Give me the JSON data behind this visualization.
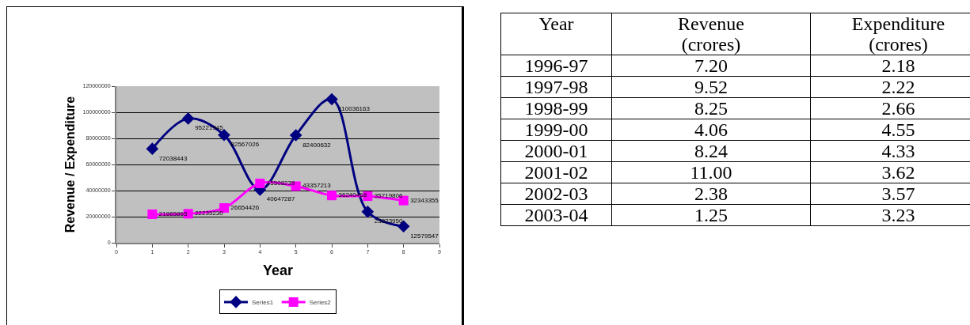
{
  "chart_data": [
    {
      "type": "line",
      "xlabel": "Year",
      "ylabel": "Revenue / Expenditure",
      "x": [
        1,
        2,
        3,
        4,
        5,
        6,
        7,
        8
      ],
      "xlim": [
        0,
        9
      ],
      "xticks": [
        0,
        1,
        2,
        3,
        4,
        5,
        6,
        7,
        8,
        9
      ],
      "ylim": [
        0,
        120000000
      ],
      "yticks": [
        0,
        20000000,
        40000000,
        60000000,
        80000000,
        100000000,
        120000000
      ],
      "grid": "y",
      "legend": "bottom",
      "data_labels": true,
      "series": [
        {
          "name": "Series1",
          "color": "#000080",
          "marker": "diamond",
          "values": [
            72038443,
            95221945,
            82567026,
            40647287,
            82400632,
            110036163,
            23823950,
            12579547
          ]
        },
        {
          "name": "Series2",
          "color": "#ff00ff",
          "marker": "square",
          "values": [
            21865865,
            22235230,
            26654426,
            45508239,
            43357213,
            36240468,
            35719806,
            32343355
          ]
        }
      ]
    },
    {
      "type": "other",
      "xlabel": "Year",
      "categories": [
        "1996-97",
        "1997-98",
        "1998-99",
        "1999-00",
        "2000-01",
        "2001-02",
        "2002-03",
        "2003-04"
      ],
      "series": [
        {
          "name": "Revenue (crores)",
          "values": [
            7.2,
            9.52,
            8.25,
            4.06,
            8.24,
            11.0,
            2.38,
            1.25
          ],
          "value_labels": [
            "7.20",
            "9.52",
            "8.25",
            "4.06",
            "8.24",
            "11.00",
            "2.38",
            "1.25"
          ]
        },
        {
          "name": "Expenditure (crores)",
          "values": [
            2.18,
            2.22,
            2.66,
            4.55,
            4.33,
            3.62,
            3.57,
            3.23
          ],
          "value_labels": [
            "2.18",
            "2.22",
            "2.66",
            "4.55",
            "4.33",
            "3.62",
            "3.57",
            "3.23"
          ]
        }
      ]
    }
  ]
}
